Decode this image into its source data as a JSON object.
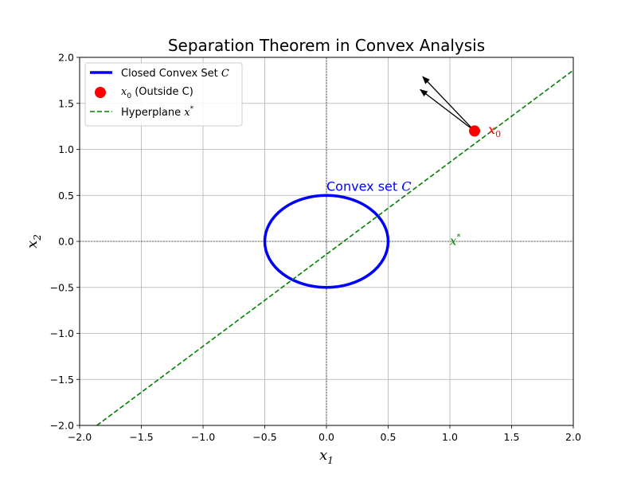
{
  "chart_data": {
    "type": "line",
    "title": "Separation Theorem in Convex Analysis",
    "xlabel": "x1",
    "ylabel": "x2",
    "xlim": [
      -2.0,
      2.0
    ],
    "ylim": [
      -2.0,
      2.0
    ],
    "xticks": [
      -2.0,
      -1.5,
      -1.0,
      -0.5,
      0.0,
      0.5,
      1.0,
      1.5,
      2.0
    ],
    "yticks": [
      -2.0,
      -1.5,
      -1.0,
      -0.5,
      0.0,
      0.5,
      1.0,
      1.5,
      2.0
    ],
    "grid": true,
    "legend_position": "top-left",
    "legend": [
      {
        "label": "Closed Convex Set C",
        "style": "line",
        "color": "#0000ff"
      },
      {
        "label": "x0 (Outside C)",
        "style": "marker",
        "color": "#ff0000"
      },
      {
        "label": "Hyperplane x*",
        "style": "dashed",
        "color": "#008000"
      }
    ],
    "convex_set": {
      "type": "circle",
      "center": [
        0.0,
        0.0
      ],
      "radius": 0.5,
      "color": "#0000ff"
    },
    "point_x0": {
      "x": 1.2,
      "y": 1.2,
      "color": "#ff0000"
    },
    "hyperplane": {
      "slope": 1.0,
      "intercept": -0.14,
      "color": "#008000",
      "x_range": [
        -2.0,
        2.0
      ]
    },
    "arrows": [
      {
        "from": [
          1.2,
          1.2
        ],
        "to": [
          0.78,
          1.79
        ],
        "color": "#000000"
      },
      {
        "from": [
          1.2,
          1.2
        ],
        "to": [
          0.76,
          1.65
        ],
        "color": "#000000"
      }
    ],
    "annotations": [
      {
        "text": "Convex set C",
        "x": 0.0,
        "y": 0.55,
        "color": "#0000ff"
      },
      {
        "text": "x0",
        "x": 1.31,
        "y": 1.17,
        "color": "#ff0000"
      },
      {
        "text": "x*",
        "x": 1.0,
        "y": -0.04,
        "color": "#008000"
      }
    ]
  }
}
